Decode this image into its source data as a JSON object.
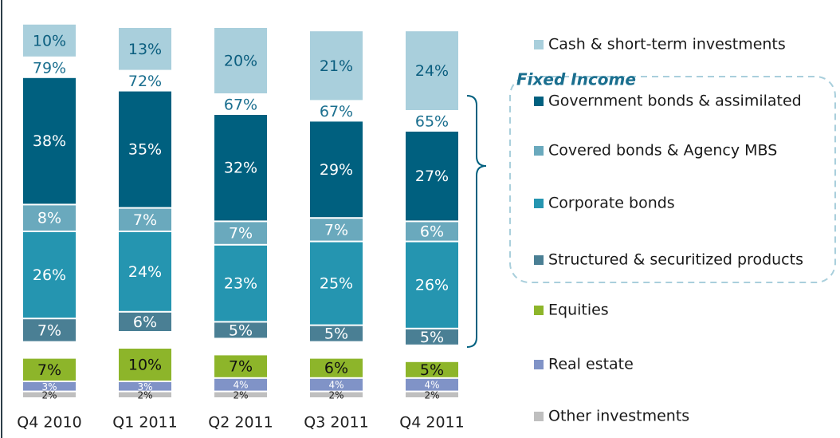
{
  "chart_data": {
    "type": "stacked_bar",
    "categories": [
      "Q4 2010",
      "Q1 2011",
      "Q2 2011",
      "Q3 2011",
      "Q4 2011"
    ],
    "series": [
      {
        "name": "Other investments",
        "color": "#bfbfbf",
        "values": [
          2,
          2,
          2,
          2,
          2
        ],
        "value_labels": [
          "2%",
          "2%",
          "2%",
          "2%",
          "2%"
        ]
      },
      {
        "name": "Real estate",
        "color": "#8093c7",
        "values": [
          3,
          3,
          4,
          4,
          4
        ],
        "value_labels": [
          "3%",
          "3%",
          "4%",
          "4%",
          "4%"
        ]
      },
      {
        "name": "Equities",
        "color": "#8db52a",
        "values": [
          7,
          10,
          7,
          6,
          5
        ],
        "value_labels": [
          "7%",
          "10%",
          "7%",
          "6%",
          "5%"
        ]
      },
      {
        "name": "Structured & securitized products",
        "color": "#4a7f94",
        "values": [
          7,
          6,
          5,
          5,
          5
        ],
        "value_labels": [
          "7%",
          "6%",
          "5%",
          "5%",
          "5%"
        ]
      },
      {
        "name": "Corporate bonds",
        "color": "#2595b0",
        "values": [
          26,
          24,
          23,
          25,
          26
        ],
        "value_labels": [
          "26%",
          "24%",
          "23%",
          "25%",
          "26%"
        ]
      },
      {
        "name": "Covered bonds & Agency MBS",
        "color": "#6aa9bd",
        "values": [
          8,
          7,
          7,
          7,
          6
        ],
        "value_labels": [
          "8%",
          "7%",
          "7%",
          "7%",
          "6%"
        ]
      },
      {
        "name": "Government bonds & assimilated",
        "color": "#00607f",
        "values": [
          38,
          35,
          32,
          29,
          27
        ],
        "value_labels": [
          "38%",
          "35%",
          "32%",
          "29%",
          "27%"
        ]
      },
      {
        "name": "Cash & short-term investments",
        "color": "#a9cfdc",
        "values": [
          10,
          13,
          20,
          21,
          24
        ],
        "value_labels": [
          "10%",
          "13%",
          "20%",
          "21%",
          "24%"
        ]
      }
    ],
    "group_totals": {
      "name": "Fixed Income",
      "values": [
        79,
        72,
        67,
        67,
        65
      ],
      "value_labels": [
        "79%",
        "72%",
        "67%",
        "67%",
        "65%"
      ]
    }
  }
}
